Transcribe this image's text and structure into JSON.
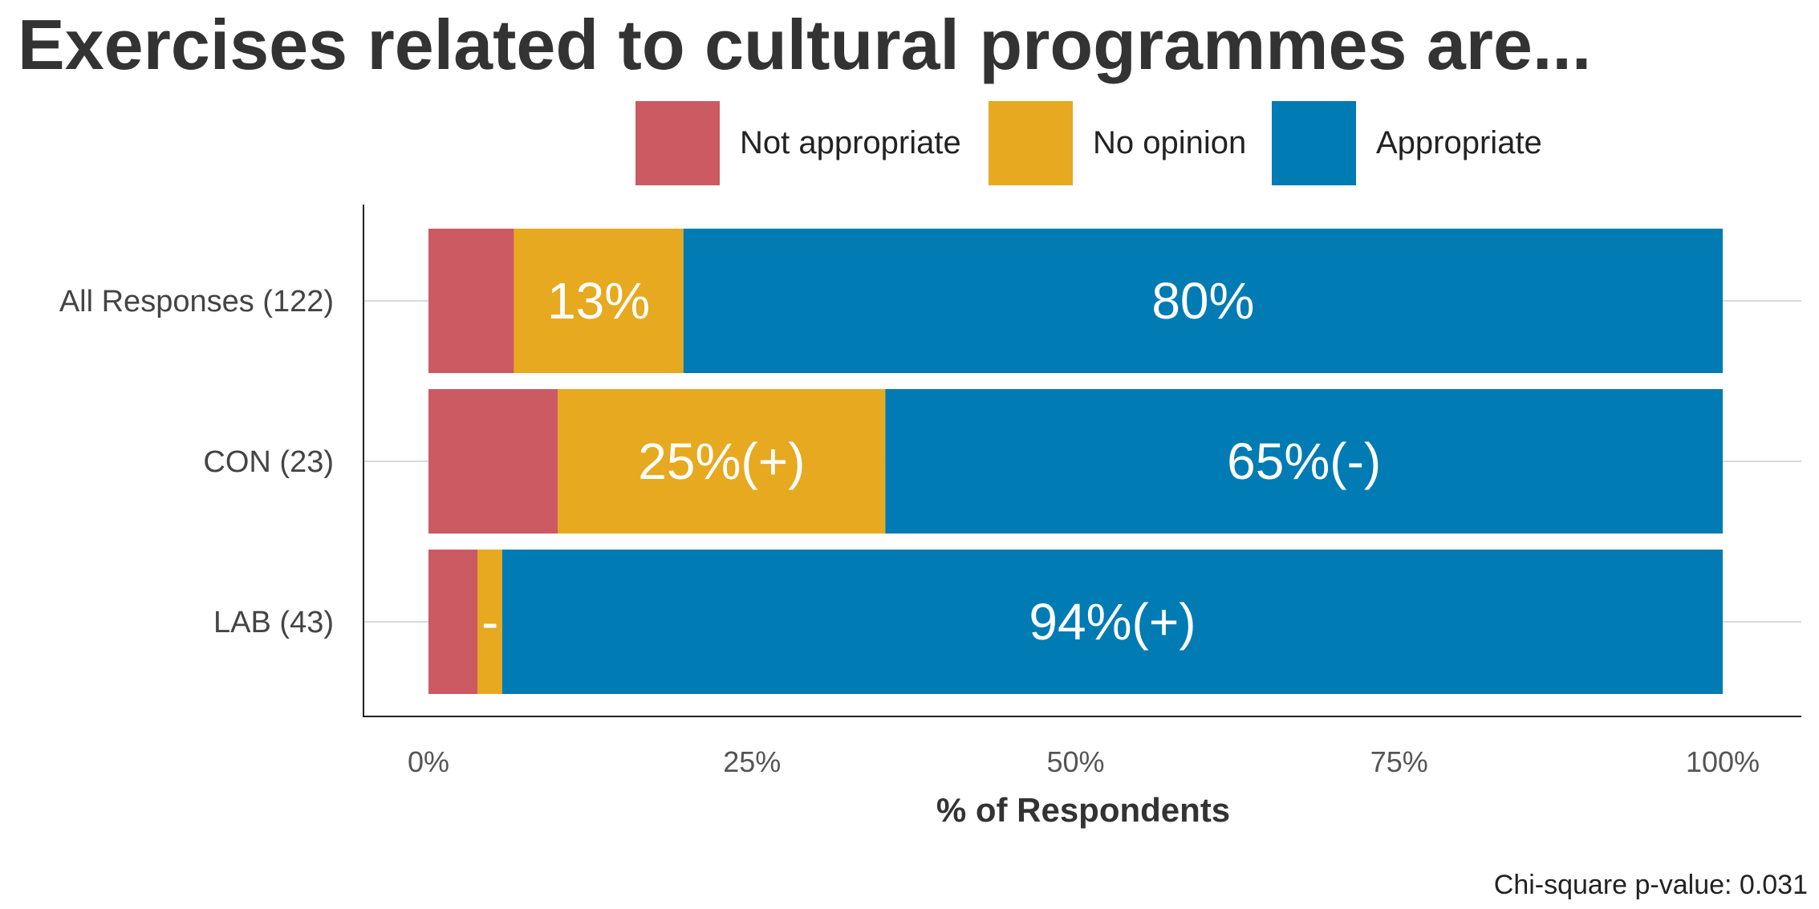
{
  "chart_data": {
    "type": "bar",
    "orientation": "horizontal",
    "stacked": true,
    "title": "Exercises related to cultural programmes are...",
    "xlabel": "% of Respondents",
    "ylabel": "",
    "xlim": [
      0,
      100
    ],
    "x_ticks": [
      "0%",
      "25%",
      "50%",
      "75%",
      "100%"
    ],
    "x_tick_values": [
      0,
      25,
      50,
      75,
      100
    ],
    "grid": true,
    "legend_position": "top",
    "categories": [
      "All Responses (122)",
      "CON (23)",
      "LAB (43)"
    ],
    "series": [
      {
        "name": "Not appropriate",
        "color": "#CC5A62",
        "values": [
          6.6,
          10,
          3.8
        ],
        "labels": [
          "",
          "",
          ""
        ]
      },
      {
        "name": "No opinion",
        "color": "#E6A91F",
        "values": [
          13.1,
          25.3,
          1.9
        ],
        "labels": [
          "13%",
          "25%(+)",
          "-"
        ]
      },
      {
        "name": "Appropriate",
        "color": "#007BB3",
        "values": [
          80.3,
          64.7,
          94.3
        ],
        "labels": [
          "80%",
          "65%(-)",
          "94%(+)"
        ]
      }
    ],
    "footnote": "Chi-square p-value: 0.031"
  }
}
